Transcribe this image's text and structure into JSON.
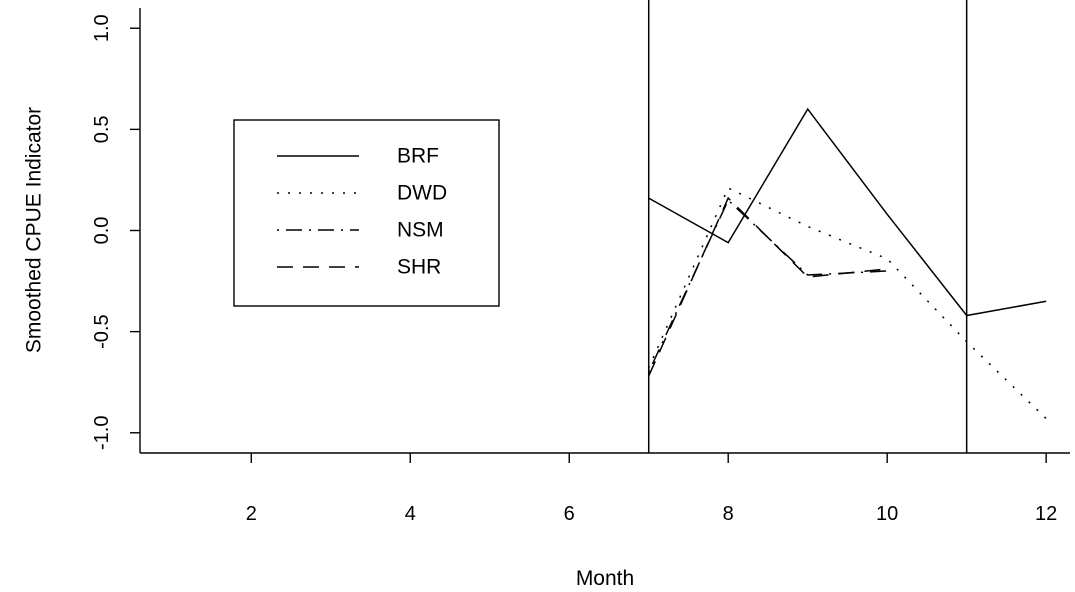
{
  "chart_data": {
    "type": "line",
    "title": "",
    "xlabel": "Month",
    "ylabel": "Smoothed CPUE Indicator",
    "xlim": [
      0.6,
      12.3
    ],
    "ylim": [
      -1.1,
      1.1
    ],
    "x_ticks": [
      2,
      4,
      6,
      8,
      10,
      12
    ],
    "x_tick_labels": [
      "2",
      "4",
      "6",
      "8",
      "10",
      "12"
    ],
    "y_ticks": [
      -1.0,
      -0.5,
      0.0,
      0.5,
      1.0
    ],
    "y_tick_labels": [
      "-1.0",
      "-0.5",
      "0.0",
      "0.5",
      "1.0"
    ],
    "vertical_lines": [
      7,
      11
    ],
    "legend_position": "upper-left",
    "grid": false,
    "series": [
      {
        "name": "BRF",
        "line_style": "solid",
        "points": [
          [
            7,
            0.16
          ],
          [
            8,
            -0.06
          ],
          [
            9,
            0.6
          ],
          [
            10,
            0.08
          ],
          [
            11,
            -0.42
          ],
          [
            12,
            -0.35
          ]
        ]
      },
      {
        "name": "DWD",
        "line_style": "dotted",
        "points": [
          [
            7,
            -0.68
          ],
          [
            8,
            0.21
          ],
          [
            9,
            0.02
          ],
          [
            10,
            -0.14
          ],
          [
            11,
            -0.55
          ],
          [
            12,
            -0.93
          ]
        ]
      },
      {
        "name": "NSM",
        "line_style": "dashdot",
        "points": [
          [
            7,
            -0.7
          ],
          [
            8,
            0.15
          ],
          [
            9,
            -0.22
          ],
          [
            10,
            -0.2
          ]
        ]
      },
      {
        "name": "SHR",
        "line_style": "longdash",
        "points": [
          [
            7,
            -0.72
          ],
          [
            8,
            0.16
          ],
          [
            9,
            -0.23
          ],
          [
            10,
            -0.19
          ]
        ]
      }
    ]
  }
}
